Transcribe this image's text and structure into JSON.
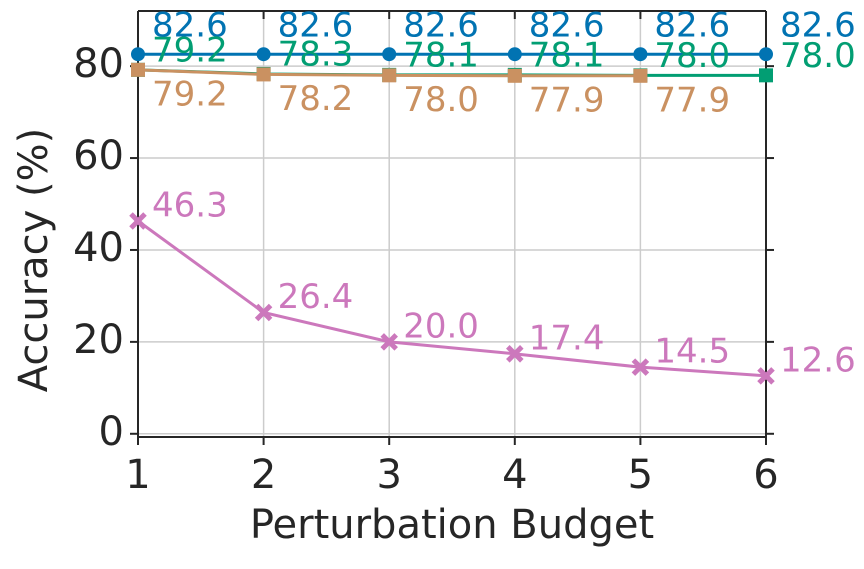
{
  "chart_data": {
    "type": "line",
    "x_label": "Perturbation Budget",
    "y_label": "Accuracy (%)",
    "x": [
      1,
      2,
      3,
      4,
      5,
      6
    ],
    "xlim": [
      1,
      6
    ],
    "xticks": [
      1,
      2,
      3,
      4,
      5,
      6
    ],
    "ylim": [
      -0.7,
      92
    ],
    "yticks": [
      0,
      20,
      40,
      60,
      80
    ],
    "grid": true,
    "series": [
      {
        "color": "#0173b2",
        "marker": "circle",
        "label_position": "above",
        "values": [
          82.6,
          82.6,
          82.6,
          82.6,
          82.6,
          82.6
        ],
        "value_labels": [
          "82.6",
          "82.6",
          "82.6",
          "82.6",
          "82.6",
          "82.6"
        ]
      },
      {
        "color": "#029e73",
        "marker": "square",
        "label_position": "right",
        "values": [
          79.2,
          78.3,
          78.1,
          78.1,
          78.0,
          78.0
        ],
        "value_labels": [
          "79.2",
          "78.3",
          "78.1",
          "78.1",
          "78.0",
          "78.0"
        ]
      },
      {
        "color": "#ca9161",
        "marker": "square",
        "label_position": "below",
        "values": [
          79.2,
          78.2,
          78.0,
          77.9,
          77.9,
          null
        ],
        "value_labels": [
          "79.2",
          "78.2",
          "78.0",
          "77.9",
          "77.9",
          null
        ]
      },
      {
        "color": "#cc78bc",
        "marker": "x",
        "label_position": "upper-right",
        "values": [
          46.3,
          26.4,
          20.0,
          17.4,
          14.5,
          12.6
        ],
        "value_labels": [
          "46.3",
          "26.4",
          "20.0",
          "17.4",
          "14.5",
          "12.6"
        ]
      }
    ]
  }
}
